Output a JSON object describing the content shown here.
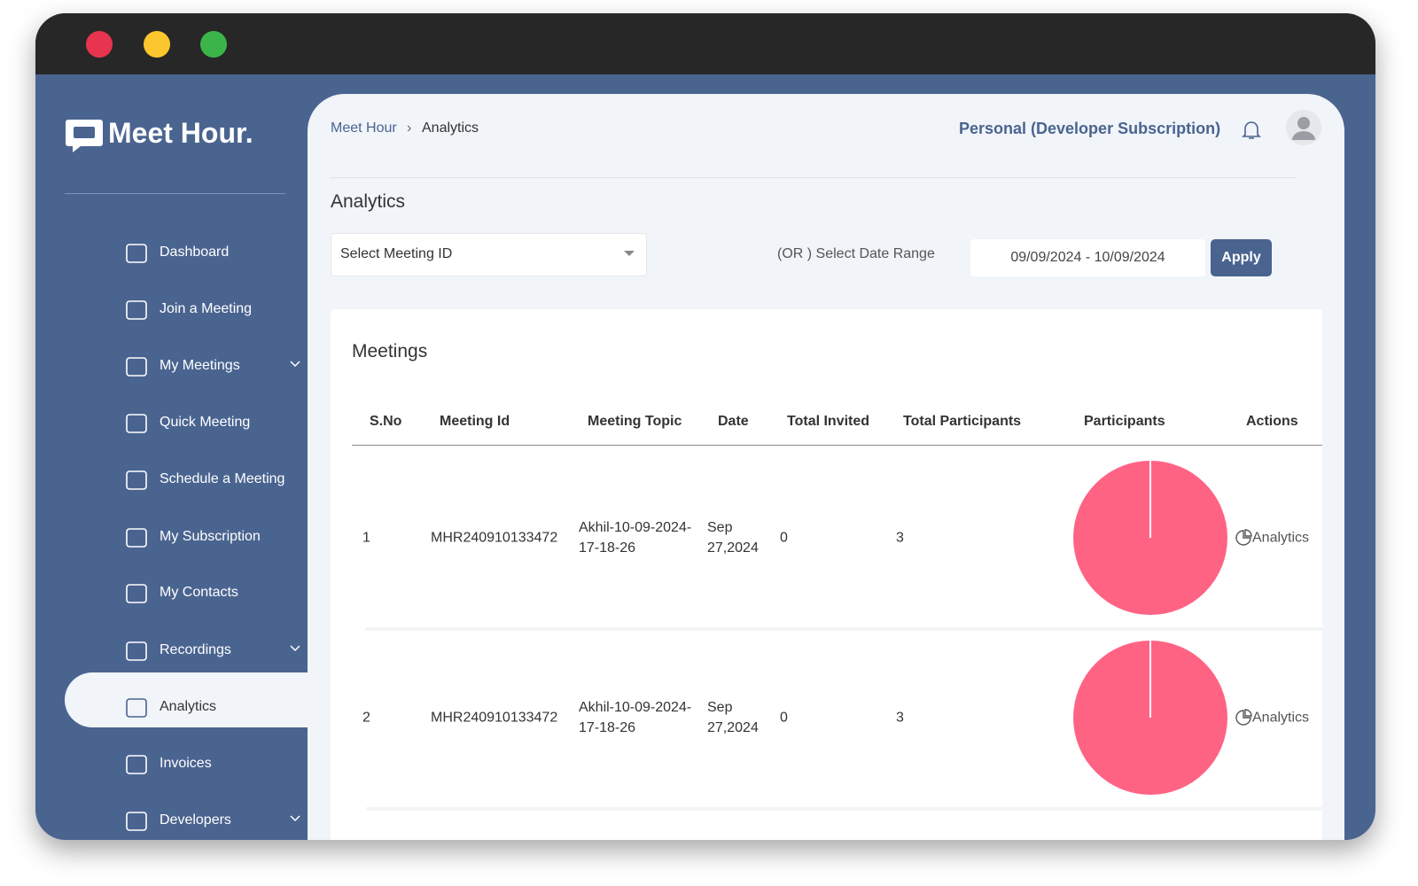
{
  "brand": "Meet Hour.",
  "sidebar": [
    "Dashboard",
    "Join a Meeting",
    "My Meetings",
    "Quick Meeting",
    "Schedule a Meeting",
    "My Subscription",
    "My Contacts",
    "Recordings",
    "Analytics",
    "Invoices",
    "Developers"
  ],
  "breadcrumb": [
    "Meet Hour",
    "Analytics"
  ],
  "header": {
    "subscription": "Personal (Developer Subscription)"
  },
  "page_title": "Analytics",
  "filters": {
    "meeting_select": "Select Meeting ID",
    "or_label": "(OR ) Select Date Range",
    "date_range": "09/09/2024 - 10/09/2024",
    "apply": "Apply"
  },
  "table": {
    "title": "Meetings",
    "columns": [
      "S.No",
      "Meeting Id",
      "Meeting Topic",
      "Date",
      "Total Invited",
      "Total Participants",
      "Participants",
      "Actions"
    ],
    "rows": [
      {
        "sno": 1,
        "meeting_id": "MHR240910133472",
        "topic": "Akhil-10-09-2024-17-18-26",
        "date": "Sep 27,2024",
        "total_invited": 0,
        "total_participants": 3,
        "action": "Analytics"
      },
      {
        "sno": 2,
        "meeting_id": "MHR240910133472",
        "topic": "Akhil-10-09-2024-17-18-26",
        "date": "Sep 27,2024",
        "total_invited": 0,
        "total_participants": 3,
        "action": "Analytics"
      }
    ]
  }
}
